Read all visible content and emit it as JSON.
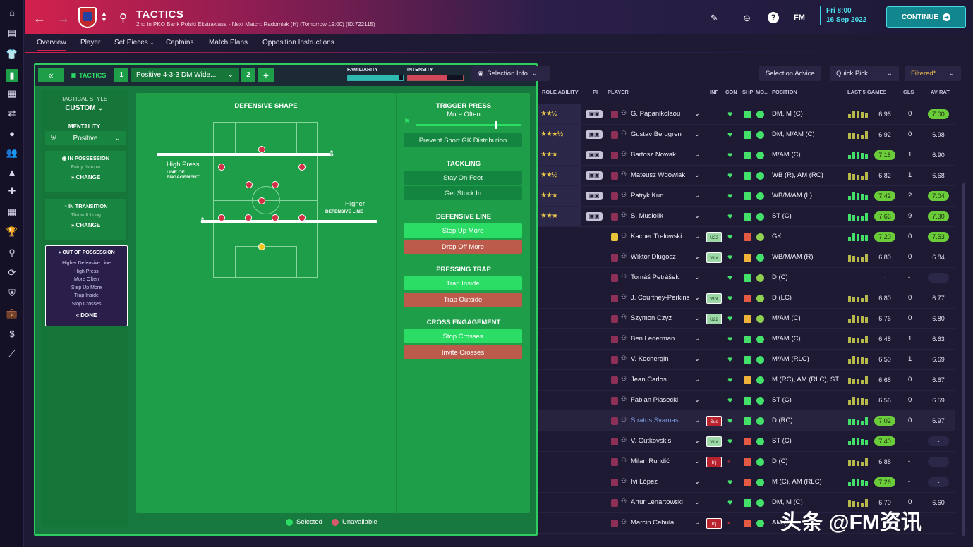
{
  "sidebar_icons": [
    "home-icon",
    "inbox-icon",
    "squad-icon",
    "tactics-icon",
    "notes-icon",
    "transfers-icon",
    "ball-icon",
    "staff-icon",
    "training-icon",
    "medical-icon",
    "calendar-icon",
    "trophy-icon",
    "search-icon",
    "refresh-icon",
    "shield-icon",
    "briefcase-icon",
    "finance-icon",
    "stats-icon"
  ],
  "header": {
    "title": "TACTICS",
    "subtitle": "2nd in PKO Bank Polski Ekstraklasa - Next Match: Radomiak (H) (Tomorrow 19:00) (ID:722115)",
    "manager_label": "FM",
    "date_day": "Fri 8:00",
    "date_full": "16 Sep 2022",
    "continue_label": "CONTINUE"
  },
  "tabs": [
    "Overview",
    "Player",
    "Set Pieces",
    "Captains",
    "Match Plans",
    "Opposition Instructions"
  ],
  "tactic_bar": {
    "label": "TACTICS",
    "slot1": "1",
    "tactic_name": "Positive 4-3-3 DM Wide...",
    "slot2": "2",
    "add": "+",
    "familiarity_label": "FAMILIARITY",
    "intensity_label": "INTENSITY"
  },
  "style_panel": {
    "tactical_style_label": "TACTICAL STYLE",
    "tactical_style_value": "CUSTOM",
    "mentality_label": "MENTALITY",
    "mentality_value": "Positive",
    "in_possession_label": "IN POSSESSION",
    "in_possession_value": "Fairly Narrow",
    "change_label": "CHANGE",
    "in_transition_label": "IN TRANSITION",
    "in_transition_value": "Throw It Long",
    "out_of_possession_label": "OUT OF POSSESSION",
    "oop_items": [
      "Higher Defensive Line",
      "High Press",
      "More Often",
      "Step Up More",
      "Trap Inside",
      "Stop Crosses"
    ],
    "done_label": "DONE"
  },
  "pitch_panel": {
    "title": "DEFENSIVE SHAPE",
    "loe_value": "High Press",
    "loe_label": "LINE OF ENGAGEMENT",
    "dl_value": "Higher",
    "dl_label": "DEFENSIVE LINE"
  },
  "instructions": {
    "trigger_press": {
      "title": "TRIGGER PRESS",
      "value": "More Often"
    },
    "gk_button": "Prevent Short GK Distribution",
    "tackling": {
      "title": "TACKLING",
      "options": [
        "Stay On Feet",
        "Get Stuck In"
      ]
    },
    "defensive_line": {
      "title": "DEFENSIVE LINE",
      "options": [
        "Step Up More",
        "Drop Off More"
      ]
    },
    "pressing_trap": {
      "title": "PRESSING TRAP",
      "options": [
        "Trap Inside",
        "Trap Outside"
      ]
    },
    "cross_engagement": {
      "title": "CROSS ENGAGEMENT",
      "options": [
        "Stop Crosses",
        "Invite Crosses"
      ]
    }
  },
  "legend": {
    "selected": "Selected",
    "unavailable": "Unavailable"
  },
  "right_controls": {
    "selection_info": "Selection Info",
    "selection_advice": "Selection Advice",
    "quick_pick": "Quick Pick",
    "filtered": "Filtered*"
  },
  "columns": [
    "ROLE ABILITY",
    "PI",
    "PLAYER",
    "INF",
    "CON",
    "SHP",
    "MO...",
    "POSITION",
    "LAST 5 GAMES",
    "GLS",
    "AV RAT"
  ],
  "players": [
    {
      "stars": "★★½",
      "num": "",
      "name": "G. Papanikolaou",
      "inf": "",
      "pos": "DM, M (C)",
      "last": "6.96",
      "gls": "0",
      "av": "7.00",
      "last_hl": false,
      "av_hl": true
    },
    {
      "stars": "★★★½",
      "num": "",
      "name": "Gustav Berggren",
      "inf": "",
      "pos": "DM, M/AM (C)",
      "last": "6.92",
      "gls": "0",
      "av": "6.98",
      "last_hl": false,
      "av_hl": false
    },
    {
      "stars": "★★★",
      "num": "",
      "name": "Bartosz Nowak",
      "inf": "",
      "pos": "M/AM (C)",
      "last": "7.18",
      "gls": "1",
      "av": "6.90",
      "last_hl": true,
      "av_hl": false
    },
    {
      "stars": "★★½",
      "num": "",
      "name": "Mateusz Wdowiak",
      "inf": "",
      "pos": "WB (R), AM (RC)",
      "last": "6.82",
      "gls": "1",
      "av": "6.68",
      "last_hl": false,
      "av_hl": false
    },
    {
      "stars": "★★★",
      "num": "",
      "name": "Patryk Kun",
      "inf": "",
      "pos": "WB/M/AM (L)",
      "last": "7.42",
      "gls": "2",
      "av": "7.04",
      "last_hl": true,
      "av_hl": true
    },
    {
      "stars": "★★★",
      "num": "",
      "name": "S. Musiolik",
      "inf": "",
      "pos": "ST (C)",
      "last": "7.66",
      "gls": "9",
      "av": "7.30",
      "last_hl": true,
      "av_hl": true
    },
    {
      "stars": "",
      "num": "",
      "name": "Kacper Trelowski",
      "inf": "U22",
      "pos": "GK",
      "last": "7.20",
      "gls": "0",
      "av": "7.53",
      "last_hl": true,
      "av_hl": true
    },
    {
      "stars": "",
      "num": "",
      "name": "Wiktor Długosz",
      "inf": "Wnt",
      "pos": "WB/M/AM (R)",
      "last": "6.80",
      "gls": "0",
      "av": "6.84",
      "last_hl": false,
      "av_hl": false
    },
    {
      "stars": "",
      "num": "",
      "name": "Tomáš Petrášek",
      "inf": "",
      "pos": "D (C)",
      "last": "-",
      "gls": "-",
      "av": "-",
      "last_hl": false,
      "av_hl": false
    },
    {
      "stars": "",
      "num": "",
      "name": "J. Courtney-Perkins",
      "inf": "Wnt",
      "pos": "D (LC)",
      "last": "6.80",
      "gls": "0",
      "av": "6.77",
      "last_hl": false,
      "av_hl": false
    },
    {
      "stars": "",
      "num": "",
      "name": "Szymon Czyż",
      "inf": "U22",
      "pos": "M/AM (C)",
      "last": "6.76",
      "gls": "0",
      "av": "6.80",
      "last_hl": false,
      "av_hl": false
    },
    {
      "stars": "",
      "num": "",
      "name": "Ben Lederman",
      "inf": "",
      "pos": "M/AM (C)",
      "last": "6.48",
      "gls": "1",
      "av": "6.63",
      "last_hl": false,
      "av_hl": false
    },
    {
      "stars": "",
      "num": "",
      "name": "V. Kochergin",
      "inf": "",
      "pos": "M/AM (RLC)",
      "last": "6.50",
      "gls": "1",
      "av": "6.69",
      "last_hl": false,
      "av_hl": false
    },
    {
      "stars": "",
      "num": "",
      "name": "Jean Carlos",
      "inf": "",
      "pos": "M (RC), AM (RLC), ST...",
      "last": "6.68",
      "gls": "0",
      "av": "6.67",
      "last_hl": false,
      "av_hl": false
    },
    {
      "stars": "",
      "num": "",
      "name": "Fabian Piasecki",
      "inf": "",
      "pos": "ST (C)",
      "last": "6.56",
      "gls": "0",
      "av": "6.59",
      "last_hl": false,
      "av_hl": false
    },
    {
      "stars": "",
      "num": "",
      "name": "Stratos Svarnas",
      "inf": "Sus",
      "pos": "D (RC)",
      "last": "7.02",
      "gls": "0",
      "av": "6.97",
      "last_hl": true,
      "av_hl": false
    },
    {
      "stars": "",
      "num": "",
      "name": "V. Gutkovskis",
      "inf": "Wnt",
      "pos": "ST (C)",
      "last": "7.40",
      "gls": "-",
      "av": "-",
      "last_hl": true,
      "av_hl": false
    },
    {
      "stars": "",
      "num": "",
      "name": "Milan Rundić",
      "inf": "Inj",
      "pos": "D (C)",
      "last": "6.88",
      "gls": "-",
      "av": "-",
      "last_hl": false,
      "av_hl": false
    },
    {
      "stars": "",
      "num": "",
      "name": "Ivi López",
      "inf": "",
      "pos": "M (C), AM (RLC)",
      "last": "7.26",
      "gls": "-",
      "av": "-",
      "last_hl": true,
      "av_hl": false
    },
    {
      "stars": "",
      "num": "",
      "name": "Artur Lenartowski",
      "inf": "",
      "pos": "DM, M (C)",
      "last": "6.70",
      "gls": "0",
      "av": "6.60",
      "last_hl": false,
      "av_hl": false
    },
    {
      "stars": "",
      "num": "",
      "name": "Marcin Cebula",
      "inf": "Inj",
      "pos": "AM (C)",
      "last": "",
      "gls": "",
      "av": "",
      "last_hl": false,
      "av_hl": false
    }
  ],
  "watermark": "头条 @FM资讯",
  "colors": {
    "accent": "#d2214c",
    "green": "#1e9e48",
    "selected": "#2bdc65",
    "unavailable": "#bc5a4b"
  }
}
